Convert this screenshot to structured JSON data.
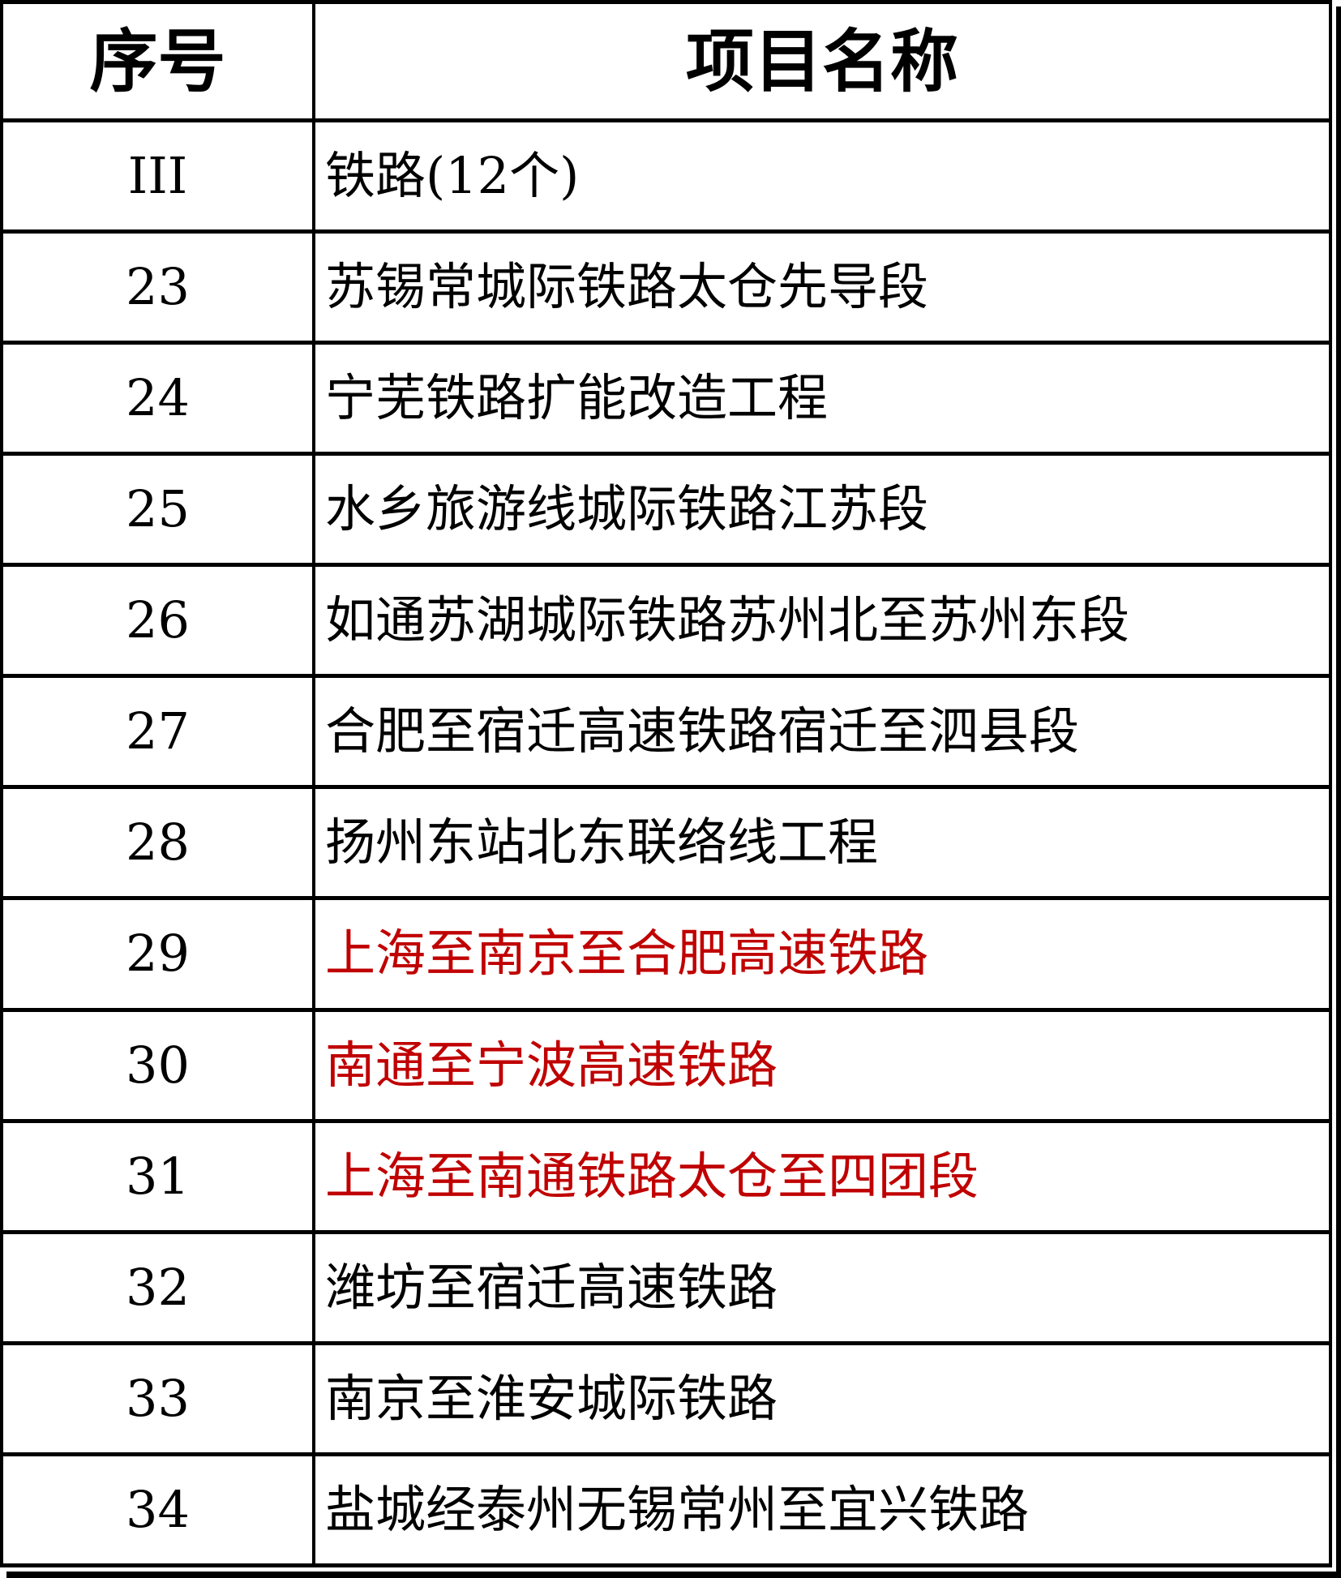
{
  "table": {
    "columns": [
      {
        "label": "序号"
      },
      {
        "label": "项目名称"
      }
    ],
    "rows": [
      {
        "no": "III",
        "name": "铁路(12个)",
        "highlight": false
      },
      {
        "no": "23",
        "name": "苏锡常城际铁路太仓先导段",
        "highlight": false
      },
      {
        "no": "24",
        "name": "宁芜铁路扩能改造工程",
        "highlight": false
      },
      {
        "no": "25",
        "name": "水乡旅游线城际铁路江苏段",
        "highlight": false
      },
      {
        "no": "26",
        "name": "如通苏湖城际铁路苏州北至苏州东段",
        "highlight": false
      },
      {
        "no": "27",
        "name": "合肥至宿迁高速铁路宿迁至泗县段",
        "highlight": false
      },
      {
        "no": "28",
        "name": "扬州东站北东联络线工程",
        "highlight": false
      },
      {
        "no": "29",
        "name": "上海至南京至合肥高速铁路",
        "highlight": true
      },
      {
        "no": "30",
        "name": "南通至宁波高速铁路",
        "highlight": true
      },
      {
        "no": "31",
        "name": "上海至南通铁路太仓至四团段",
        "highlight": true
      },
      {
        "no": "32",
        "name": "潍坊至宿迁高速铁路",
        "highlight": false
      },
      {
        "no": "33",
        "name": "南京至淮安城际铁路",
        "highlight": false
      },
      {
        "no": "34",
        "name": "盐城经泰州无锡常州至宜兴铁路",
        "highlight": false
      }
    ],
    "colors": {
      "text": "#000000",
      "highlight": "#c00000",
      "border": "#000000",
      "background": "#ffffff"
    }
  }
}
